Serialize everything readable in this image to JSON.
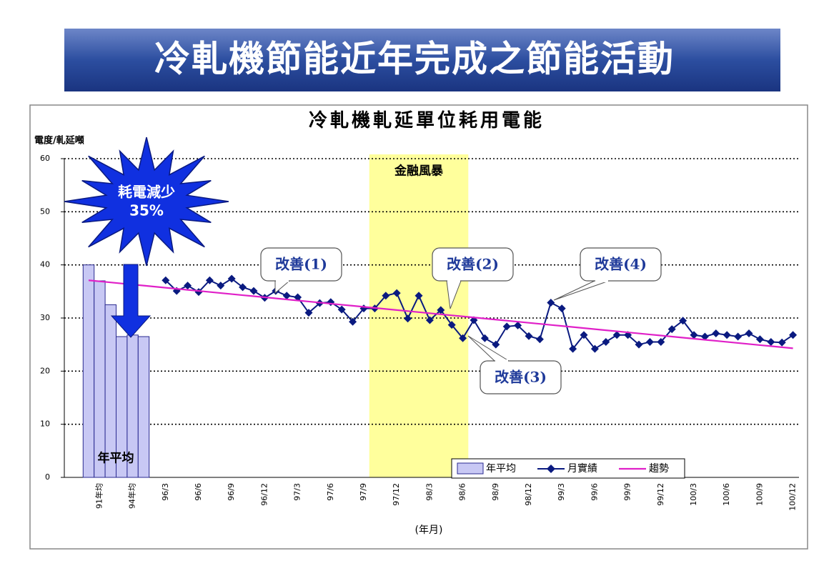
{
  "slide_title": "冷軋機節能近年完成之節能活動",
  "chart_data": {
    "type": "combo",
    "title": "冷軋機軋延單位耗用電能",
    "y_label": "電度/軋延噸",
    "x_label": "(年月)",
    "categories": [
      null,
      "91年均",
      null,
      null,
      "94年均",
      null,
      null,
      "96/3",
      null,
      null,
      "96/6",
      null,
      null,
      "96/9",
      null,
      null,
      "96/12",
      null,
      null,
      "97/3",
      null,
      null,
      "97/6",
      null,
      null,
      "97/9",
      null,
      null,
      "97/12",
      null,
      null,
      "98/3",
      null,
      null,
      "98/6",
      null,
      null,
      "98/9",
      null,
      null,
      "98/12",
      null,
      null,
      "99/3",
      null,
      null,
      "99/6",
      null,
      null,
      "99/9",
      null,
      null,
      "99/12",
      null,
      null,
      "100/3",
      null,
      null,
      "100/6",
      null,
      null,
      "100/9",
      null,
      null,
      "100/12"
    ],
    "series": [
      {
        "name": "年平均",
        "type": "bar",
        "color": "#c8c8f4",
        "values": [
          40,
          37,
          32.5,
          26.5,
          26.8,
          26.5,
          null,
          null,
          null,
          null,
          null,
          null,
          null,
          null,
          null,
          null,
          null,
          null,
          null,
          null,
          null,
          null,
          null,
          null,
          null,
          null,
          null,
          null,
          null,
          null,
          null,
          null,
          null,
          null,
          null,
          null,
          null,
          null,
          null,
          null,
          null,
          null,
          null,
          null,
          null,
          null,
          null,
          null,
          null,
          null,
          null,
          null,
          null,
          null,
          null,
          null,
          null,
          null,
          null,
          null,
          null,
          null,
          null,
          null,
          null
        ]
      },
      {
        "name": "月實績",
        "type": "line",
        "marker": "diamond",
        "color": "#0a1a80",
        "values": [
          null,
          null,
          null,
          null,
          null,
          null,
          null,
          37.1,
          35.1,
          36.1,
          34.9,
          37.1,
          36.1,
          37.4,
          35.8,
          35.1,
          33.8,
          35.1,
          34.2,
          33.9,
          31,
          32.8,
          33,
          31.6,
          29.3,
          31.8,
          31.8,
          34.2,
          34.7,
          29.9,
          34.2,
          29.6,
          31.5,
          28.7,
          26.2,
          29.6,
          26.2,
          25,
          28.4,
          28.6,
          26.6,
          26,
          32.9,
          31.8,
          24.2,
          26.8,
          24.2,
          25.5,
          26.8,
          26.8,
          25,
          25.5,
          25.5,
          27.9,
          29.5,
          26.8,
          26.5,
          27.1,
          26.8,
          26.5,
          27.1,
          26,
          25.5,
          25.4,
          26.8
        ]
      },
      {
        "name": "趨勢",
        "type": "line",
        "color": "#e020c8",
        "values": [
          37.1,
          36.9,
          36.7,
          36.5,
          36.3,
          36.1,
          35.9,
          35.7,
          35.5,
          35.3,
          35.1,
          34.9,
          34.7,
          34.5,
          34.3,
          34.1,
          33.9,
          33.7,
          33.5,
          33.3,
          33.1,
          32.9,
          32.7,
          32.5,
          32.3,
          32.1,
          31.9,
          31.7,
          31.5,
          31.3,
          31.1,
          30.9,
          30.7,
          30.5,
          30.3,
          30.1,
          29.9,
          29.7,
          29.5,
          29.3,
          29.1,
          28.9,
          28.7,
          28.5,
          28.3,
          28.1,
          27.9,
          27.7,
          27.5,
          27.3,
          27.1,
          26.9,
          26.7,
          26.5,
          26.3,
          26.1,
          25.9,
          25.7,
          25.5,
          25.3,
          25.1,
          24.9,
          24.7,
          24.5,
          24.3
        ]
      }
    ],
    "ylim": [
      0,
      60
    ],
    "yticks": [
      0,
      10,
      20,
      30,
      40,
      50,
      60
    ],
    "grid": true,
    "shade_label": "金融風暴",
    "bar_label": "年平均",
    "burst_text": "耗電減少",
    "burst_value": "35%",
    "callouts": [
      "改善(1)",
      "改善(2)",
      "改善(3)",
      "改善(4)"
    ]
  }
}
